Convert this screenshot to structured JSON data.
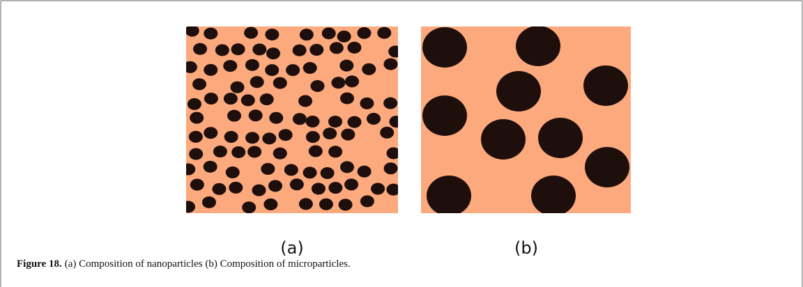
{
  "figure": {
    "panels": [
      {
        "label": "(a)"
      },
      {
        "label": "(b)"
      }
    ],
    "caption": {
      "label": "Figure 18.",
      "text": "(a) Composition of nanoparticles (b) Composition of microparticles."
    }
  }
}
